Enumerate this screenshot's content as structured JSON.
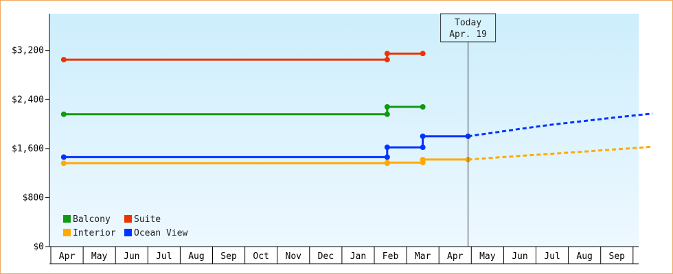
{
  "chart_data": {
    "type": "line",
    "ylim": [
      0,
      3800
    ],
    "y_ticks": [
      {
        "value": 0,
        "label": "$0"
      },
      {
        "value": 800,
        "label": "$800"
      },
      {
        "value": 1600,
        "label": "$1,600"
      },
      {
        "value": 2400,
        "label": "$2,400"
      },
      {
        "value": 3200,
        "label": "$3,200"
      }
    ],
    "x_labels": [
      "Apr",
      "May",
      "Jun",
      "Jul",
      "Aug",
      "Sep",
      "Oct",
      "Nov",
      "Dec",
      "Jan",
      "Feb",
      "Mar",
      "Apr",
      "May",
      "Jun",
      "Jul",
      "Aug",
      "Sep"
    ],
    "today": {
      "label": "Today",
      "date": "Apr. 19",
      "month_index": 12.4
    },
    "legend": [
      {
        "name": "Balcony",
        "color": "#119911"
      },
      {
        "name": "Suite",
        "color": "#ee3300"
      },
      {
        "name": "Interior",
        "color": "#ffaa00"
      },
      {
        "name": "Ocean View",
        "color": "#0033ff"
      }
    ],
    "series": [
      {
        "name": "Suite",
        "color": "#ee3300",
        "points": [
          [
            -0.1,
            3050
          ],
          [
            9.9,
            3050
          ],
          [
            9.9,
            3150
          ],
          [
            11.0,
            3150
          ]
        ]
      },
      {
        "name": "Balcony",
        "color": "#119911",
        "points": [
          [
            -0.1,
            2160
          ],
          [
            9.9,
            2160
          ],
          [
            9.9,
            2280
          ],
          [
            11.0,
            2280
          ]
        ]
      },
      {
        "name": "Ocean View",
        "color": "#0033ff",
        "points": [
          [
            -0.1,
            1460
          ],
          [
            9.9,
            1460
          ],
          [
            9.9,
            1620
          ],
          [
            11.0,
            1620
          ],
          [
            11.0,
            1800
          ],
          [
            12.4,
            1800
          ]
        ],
        "forecast": [
          [
            12.4,
            1800
          ],
          [
            13.2,
            1860
          ],
          [
            14.0,
            1920
          ],
          [
            15.0,
            1990
          ],
          [
            16.0,
            2050
          ],
          [
            17.0,
            2110
          ],
          [
            18.1,
            2170
          ]
        ]
      },
      {
        "name": "Interior",
        "color": "#ffaa00",
        "points": [
          [
            -0.1,
            1360
          ],
          [
            9.9,
            1360
          ],
          [
            9.9,
            1370
          ],
          [
            11.0,
            1370
          ],
          [
            11.0,
            1420
          ],
          [
            12.4,
            1420
          ]
        ],
        "forecast": [
          [
            12.4,
            1420
          ],
          [
            14.0,
            1480
          ],
          [
            16.0,
            1550
          ],
          [
            18.1,
            1630
          ]
        ]
      }
    ]
  }
}
